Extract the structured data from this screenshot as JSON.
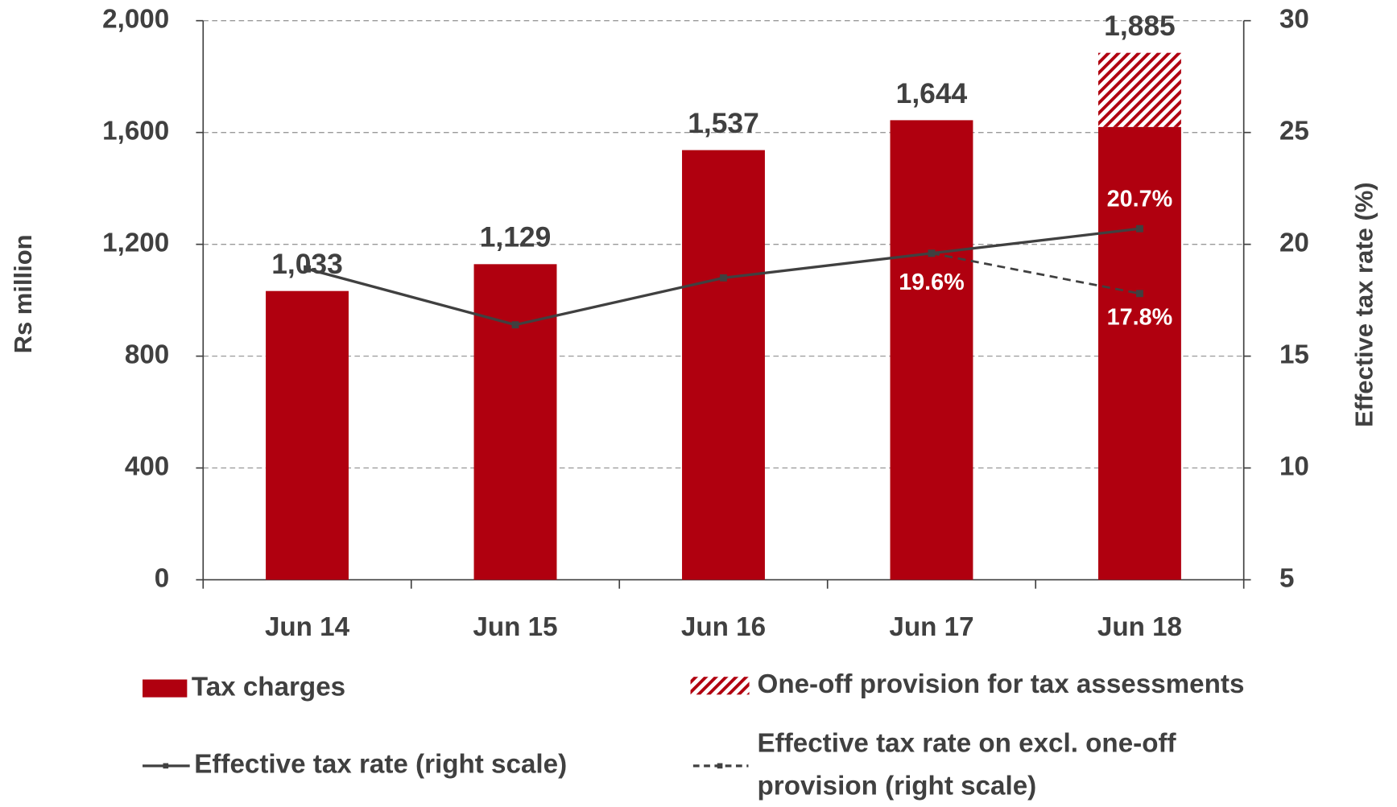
{
  "chart_data": {
    "type": "bar",
    "categories": [
      "Jun 14",
      "Jun 15",
      "Jun 16",
      "Jun 17",
      "Jun 18"
    ],
    "ylabel": "Rs million",
    "y2label": "Effective tax rate (%)",
    "ylim": [
      0,
      2000
    ],
    "yticks": [
      0,
      400,
      800,
      {
        "value": 1200,
        "label": "1,200"
      },
      {
        "value": 1600,
        "label": "1,600"
      },
      {
        "value": 2000,
        "label": "2,000"
      }
    ],
    "y2lim": [
      5,
      30
    ],
    "y2ticks": [
      5,
      10,
      15,
      20,
      25,
      30
    ],
    "grid": true,
    "total_labels": [
      "1,033",
      "1,129",
      "1,537",
      "1,644",
      "1,885"
    ],
    "series": [
      {
        "name": "Tax charges",
        "type": "bar",
        "color": "#b0000f",
        "values": [
          1033,
          1129,
          1537,
          1644,
          1620
        ]
      },
      {
        "name": "One-off provision for tax assessments",
        "type": "bar",
        "color": "#b0000f",
        "hatch": true,
        "values": [
          null,
          null,
          null,
          null,
          265
        ]
      },
      {
        "name": "Effective tax rate (right scale)",
        "type": "line",
        "axis": "y2",
        "color": "#404040",
        "values": [
          18.9,
          16.4,
          18.5,
          19.6,
          20.7
        ],
        "value_labels": [
          null,
          null,
          null,
          "19.6%",
          "20.7%"
        ]
      },
      {
        "name": "Effective tax rate on excl. one-off provision (right scale)",
        "type": "line",
        "axis": "y2",
        "dashed": true,
        "color": "#404040",
        "values": [
          null,
          null,
          null,
          19.6,
          17.8
        ],
        "value_labels": [
          null,
          null,
          null,
          null,
          "17.8%"
        ]
      }
    ]
  }
}
